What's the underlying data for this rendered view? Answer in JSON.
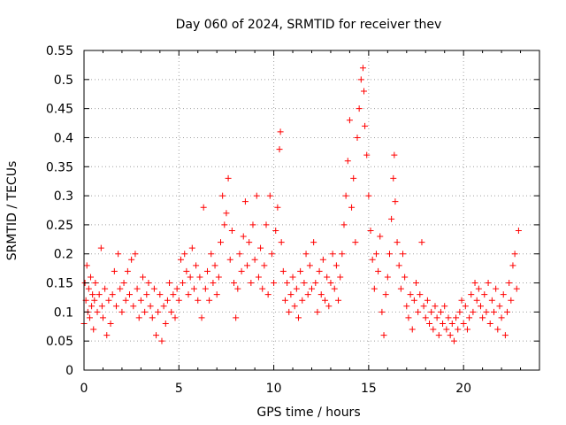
{
  "chart_data": {
    "type": "scatter",
    "title": "Day 060 of 2024, SRMTID for receiver thev",
    "xlabel": "GPS time / hours",
    "ylabel": "SRMTID / TECUs",
    "xlim": [
      0,
      24
    ],
    "ylim": [
      0,
      0.55
    ],
    "xticks": [
      0,
      5,
      10,
      15,
      20
    ],
    "xtick_labels": [
      "0",
      "5",
      "10",
      "15",
      "20"
    ],
    "yticks": [
      0,
      0.05,
      0.1,
      0.15,
      0.2,
      0.25,
      0.3,
      0.35,
      0.4,
      0.45,
      0.5,
      0.55
    ],
    "ytick_labels": [
      "0",
      "0.05",
      "0.1",
      "0.15",
      "0.2",
      "0.25",
      "0.3",
      "0.35",
      "0.4",
      "0.45",
      "0.5",
      "0.55"
    ],
    "grid": true,
    "marker": "plus",
    "color": "#ff0000",
    "points": [
      [
        0.0,
        0.08
      ],
      [
        0.05,
        0.15
      ],
      [
        0.1,
        0.12
      ],
      [
        0.15,
        0.18
      ],
      [
        0.2,
        0.1
      ],
      [
        0.25,
        0.14
      ],
      [
        0.3,
        0.09
      ],
      [
        0.35,
        0.16
      ],
      [
        0.4,
        0.11
      ],
      [
        0.45,
        0.13
      ],
      [
        0.5,
        0.07
      ],
      [
        0.55,
        0.12
      ],
      [
        0.6,
        0.15
      ],
      [
        0.7,
        0.1
      ],
      [
        0.8,
        0.13
      ],
      [
        0.9,
        0.21
      ],
      [
        0.95,
        0.11
      ],
      [
        1.0,
        0.09
      ],
      [
        1.1,
        0.14
      ],
      [
        1.2,
        0.06
      ],
      [
        1.3,
        0.12
      ],
      [
        1.4,
        0.08
      ],
      [
        1.5,
        0.13
      ],
      [
        1.6,
        0.17
      ],
      [
        1.7,
        0.11
      ],
      [
        1.8,
        0.2
      ],
      [
        1.9,
        0.14
      ],
      [
        2.0,
        0.1
      ],
      [
        2.1,
        0.15
      ],
      [
        2.2,
        0.12
      ],
      [
        2.3,
        0.17
      ],
      [
        2.4,
        0.13
      ],
      [
        2.5,
        0.19
      ],
      [
        2.6,
        0.11
      ],
      [
        2.7,
        0.2
      ],
      [
        2.8,
        0.14
      ],
      [
        2.9,
        0.09
      ],
      [
        3.0,
        0.12
      ],
      [
        3.1,
        0.16
      ],
      [
        3.2,
        0.1
      ],
      [
        3.3,
        0.13
      ],
      [
        3.4,
        0.15
      ],
      [
        3.5,
        0.11
      ],
      [
        3.6,
        0.09
      ],
      [
        3.7,
        0.14
      ],
      [
        3.8,
        0.06
      ],
      [
        3.9,
        0.1
      ],
      [
        4.0,
        0.13
      ],
      [
        4.1,
        0.05
      ],
      [
        4.2,
        0.11
      ],
      [
        4.3,
        0.08
      ],
      [
        4.4,
        0.12
      ],
      [
        4.5,
        0.15
      ],
      [
        4.6,
        0.1
      ],
      [
        4.7,
        0.13
      ],
      [
        4.8,
        0.09
      ],
      [
        4.9,
        0.14
      ],
      [
        5.0,
        0.12
      ],
      [
        5.1,
        0.19
      ],
      [
        5.2,
        0.15
      ],
      [
        5.3,
        0.2
      ],
      [
        5.4,
        0.17
      ],
      [
        5.5,
        0.13
      ],
      [
        5.6,
        0.16
      ],
      [
        5.7,
        0.21
      ],
      [
        5.8,
        0.14
      ],
      [
        5.9,
        0.18
      ],
      [
        6.0,
        0.12
      ],
      [
        6.1,
        0.16
      ],
      [
        6.2,
        0.09
      ],
      [
        6.3,
        0.28
      ],
      [
        6.4,
        0.14
      ],
      [
        6.5,
        0.17
      ],
      [
        6.6,
        0.12
      ],
      [
        6.7,
        0.2
      ],
      [
        6.8,
        0.15
      ],
      [
        6.9,
        0.18
      ],
      [
        7.0,
        0.13
      ],
      [
        7.1,
        0.16
      ],
      [
        7.2,
        0.22
      ],
      [
        7.3,
        0.3
      ],
      [
        7.4,
        0.25
      ],
      [
        7.5,
        0.27
      ],
      [
        7.6,
        0.33
      ],
      [
        7.7,
        0.19
      ],
      [
        7.8,
        0.24
      ],
      [
        7.9,
        0.15
      ],
      [
        8.0,
        0.09
      ],
      [
        8.1,
        0.14
      ],
      [
        8.2,
        0.2
      ],
      [
        8.3,
        0.17
      ],
      [
        8.4,
        0.23
      ],
      [
        8.5,
        0.29
      ],
      [
        8.6,
        0.18
      ],
      [
        8.7,
        0.22
      ],
      [
        8.8,
        0.15
      ],
      [
        8.9,
        0.25
      ],
      [
        9.0,
        0.19
      ],
      [
        9.1,
        0.3
      ],
      [
        9.2,
        0.16
      ],
      [
        9.3,
        0.21
      ],
      [
        9.4,
        0.14
      ],
      [
        9.5,
        0.18
      ],
      [
        9.6,
        0.25
      ],
      [
        9.7,
        0.13
      ],
      [
        9.8,
        0.3
      ],
      [
        9.9,
        0.2
      ],
      [
        10.0,
        0.15
      ],
      [
        10.1,
        0.24
      ],
      [
        10.2,
        0.28
      ],
      [
        10.3,
        0.38
      ],
      [
        10.35,
        0.41
      ],
      [
        10.4,
        0.22
      ],
      [
        10.5,
        0.17
      ],
      [
        10.6,
        0.12
      ],
      [
        10.7,
        0.15
      ],
      [
        10.8,
        0.1
      ],
      [
        10.9,
        0.13
      ],
      [
        11.0,
        0.16
      ],
      [
        11.1,
        0.11
      ],
      [
        11.2,
        0.14
      ],
      [
        11.3,
        0.09
      ],
      [
        11.4,
        0.17
      ],
      [
        11.5,
        0.12
      ],
      [
        11.6,
        0.15
      ],
      [
        11.7,
        0.2
      ],
      [
        11.8,
        0.13
      ],
      [
        11.9,
        0.18
      ],
      [
        12.0,
        0.14
      ],
      [
        12.1,
        0.22
      ],
      [
        12.2,
        0.15
      ],
      [
        12.3,
        0.1
      ],
      [
        12.4,
        0.17
      ],
      [
        12.5,
        0.13
      ],
      [
        12.6,
        0.19
      ],
      [
        12.7,
        0.12
      ],
      [
        12.8,
        0.16
      ],
      [
        12.9,
        0.11
      ],
      [
        13.0,
        0.15
      ],
      [
        13.1,
        0.2
      ],
      [
        13.2,
        0.14
      ],
      [
        13.3,
        0.18
      ],
      [
        13.4,
        0.12
      ],
      [
        13.5,
        0.16
      ],
      [
        13.6,
        0.2
      ],
      [
        13.7,
        0.25
      ],
      [
        13.8,
        0.3
      ],
      [
        13.9,
        0.36
      ],
      [
        14.0,
        0.43
      ],
      [
        14.1,
        0.28
      ],
      [
        14.2,
        0.33
      ],
      [
        14.3,
        0.22
      ],
      [
        14.4,
        0.4
      ],
      [
        14.5,
        0.45
      ],
      [
        14.6,
        0.5
      ],
      [
        14.7,
        0.52
      ],
      [
        14.75,
        0.48
      ],
      [
        14.8,
        0.42
      ],
      [
        14.9,
        0.37
      ],
      [
        15.0,
        0.3
      ],
      [
        15.1,
        0.24
      ],
      [
        15.2,
        0.19
      ],
      [
        15.3,
        0.14
      ],
      [
        15.4,
        0.2
      ],
      [
        15.5,
        0.17
      ],
      [
        15.6,
        0.23
      ],
      [
        15.7,
        0.1
      ],
      [
        15.8,
        0.06
      ],
      [
        15.9,
        0.13
      ],
      [
        16.0,
        0.16
      ],
      [
        16.1,
        0.2
      ],
      [
        16.2,
        0.26
      ],
      [
        16.3,
        0.33
      ],
      [
        16.35,
        0.37
      ],
      [
        16.4,
        0.29
      ],
      [
        16.5,
        0.22
      ],
      [
        16.6,
        0.18
      ],
      [
        16.7,
        0.14
      ],
      [
        16.8,
        0.2
      ],
      [
        16.9,
        0.16
      ],
      [
        17.0,
        0.11
      ],
      [
        17.1,
        0.09
      ],
      [
        17.2,
        0.13
      ],
      [
        17.3,
        0.07
      ],
      [
        17.4,
        0.12
      ],
      [
        17.5,
        0.15
      ],
      [
        17.6,
        0.1
      ],
      [
        17.7,
        0.13
      ],
      [
        17.8,
        0.22
      ],
      [
        17.9,
        0.11
      ],
      [
        18.0,
        0.09
      ],
      [
        18.1,
        0.12
      ],
      [
        18.2,
        0.08
      ],
      [
        18.3,
        0.1
      ],
      [
        18.4,
        0.07
      ],
      [
        18.5,
        0.11
      ],
      [
        18.6,
        0.09
      ],
      [
        18.7,
        0.06
      ],
      [
        18.8,
        0.1
      ],
      [
        18.9,
        0.08
      ],
      [
        19.0,
        0.11
      ],
      [
        19.1,
        0.07
      ],
      [
        19.2,
        0.09
      ],
      [
        19.3,
        0.06
      ],
      [
        19.4,
        0.08
      ],
      [
        19.5,
        0.05
      ],
      [
        19.6,
        0.09
      ],
      [
        19.7,
        0.07
      ],
      [
        19.8,
        0.1
      ],
      [
        19.9,
        0.12
      ],
      [
        20.0,
        0.08
      ],
      [
        20.1,
        0.11
      ],
      [
        20.2,
        0.07
      ],
      [
        20.3,
        0.09
      ],
      [
        20.4,
        0.13
      ],
      [
        20.5,
        0.1
      ],
      [
        20.6,
        0.15
      ],
      [
        20.7,
        0.12
      ],
      [
        20.8,
        0.14
      ],
      [
        20.9,
        0.11
      ],
      [
        21.0,
        0.09
      ],
      [
        21.1,
        0.13
      ],
      [
        21.2,
        0.1
      ],
      [
        21.3,
        0.15
      ],
      [
        21.4,
        0.08
      ],
      [
        21.5,
        0.12
      ],
      [
        21.6,
        0.1
      ],
      [
        21.7,
        0.14
      ],
      [
        21.8,
        0.07
      ],
      [
        21.9,
        0.11
      ],
      [
        22.0,
        0.09
      ],
      [
        22.1,
        0.13
      ],
      [
        22.2,
        0.06
      ],
      [
        22.3,
        0.1
      ],
      [
        22.4,
        0.15
      ],
      [
        22.5,
        0.12
      ],
      [
        22.6,
        0.18
      ],
      [
        22.7,
        0.2
      ],
      [
        22.8,
        0.14
      ],
      [
        22.9,
        0.24
      ]
    ]
  }
}
